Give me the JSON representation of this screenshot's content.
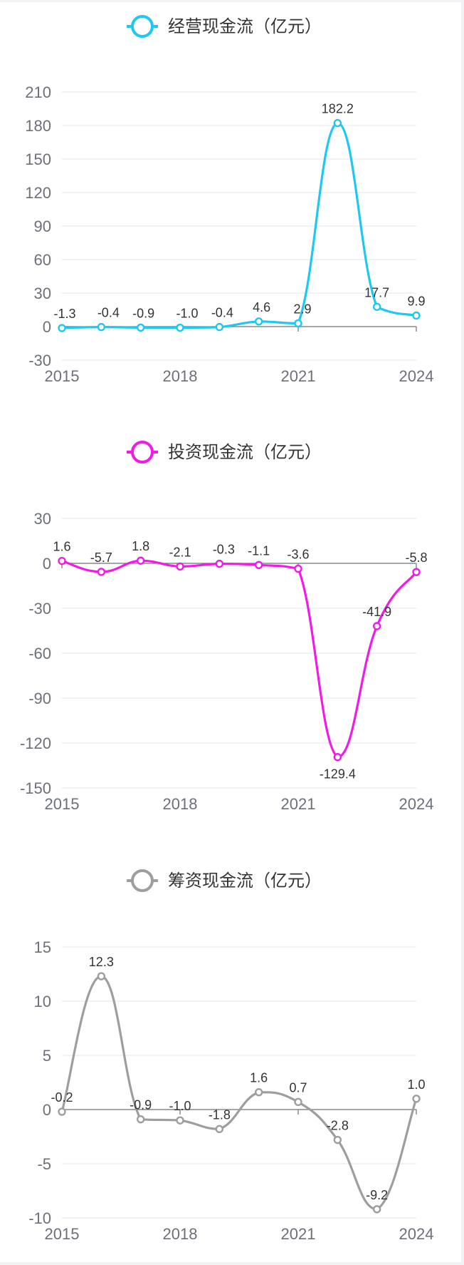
{
  "chart_data": [
    {
      "type": "line",
      "smooth": true,
      "unit": "亿元",
      "legend": [
        "经营现金流（亿元）"
      ],
      "legend_position": "top-center",
      "color": "#1ec8f0",
      "x": [
        2015,
        2016,
        2017,
        2018,
        2019,
        2020,
        2021,
        2022,
        2023,
        2024
      ],
      "x_tick_labels": [
        "2015",
        "2018",
        "2021",
        "2024"
      ],
      "series": [
        {
          "name": "经营现金流（亿元）",
          "values": [
            -1.3,
            -0.4,
            -0.9,
            -1.0,
            -0.4,
            4.6,
            2.9,
            182.2,
            17.7,
            9.9
          ]
        }
      ],
      "labels": [
        "-1.3",
        "-0.4",
        "-0.9",
        "-1.0",
        "-0.4",
        "4.6",
        "2.9",
        "182.2",
        "17.7",
        "9.9"
      ],
      "ylim": [
        -30,
        210
      ],
      "y_ticks": [
        210,
        180,
        150,
        120,
        90,
        60,
        30,
        0,
        -30
      ],
      "grid": true
    },
    {
      "type": "line",
      "smooth": true,
      "unit": "亿元",
      "legend": [
        "投资现金流（亿元）"
      ],
      "legend_position": "top-center",
      "color": "#f21be6",
      "x": [
        2015,
        2016,
        2017,
        2018,
        2019,
        2020,
        2021,
        2022,
        2023,
        2024
      ],
      "x_tick_labels": [
        "2015",
        "2018",
        "2021",
        "2024"
      ],
      "series": [
        {
          "name": "投资现金流（亿元）",
          "values": [
            1.6,
            -5.7,
            1.8,
            -2.1,
            -0.3,
            -1.1,
            -3.6,
            -129.4,
            -41.9,
            -5.8
          ]
        }
      ],
      "labels": [
        "1.6",
        "-5.7",
        "1.8",
        "-2.1",
        "-0.3",
        "-1.1",
        "-3.6",
        "-129.4",
        "-41.9",
        "-5.8"
      ],
      "ylim": [
        -150,
        30
      ],
      "y_ticks": [
        30,
        0,
        -30,
        -60,
        -90,
        -120,
        -150
      ],
      "grid": true
    },
    {
      "type": "line",
      "smooth": true,
      "unit": "亿元",
      "legend": [
        "筹资现金流（亿元）"
      ],
      "legend_position": "top-center",
      "color": "#9e9e9e",
      "x": [
        2015,
        2016,
        2017,
        2018,
        2019,
        2020,
        2021,
        2022,
        2023,
        2024
      ],
      "x_tick_labels": [
        "2015",
        "2018",
        "2021",
        "2024"
      ],
      "series": [
        {
          "name": "筹资现金流（亿元）",
          "values": [
            -0.2,
            12.3,
            -0.9,
            -1.0,
            -1.8,
            1.6,
            0.7,
            -2.8,
            -9.2,
            1.0
          ]
        }
      ],
      "labels": [
        "-0.2",
        "12.3",
        "-0.9",
        "-1.0",
        "-1.8",
        "1.6",
        "0.7",
        "-2.8",
        "-9.2",
        "1.0"
      ],
      "ylim": [
        -10,
        15
      ],
      "y_ticks": [
        15,
        10,
        5,
        0,
        -5,
        -10
      ],
      "grid": true
    }
  ]
}
